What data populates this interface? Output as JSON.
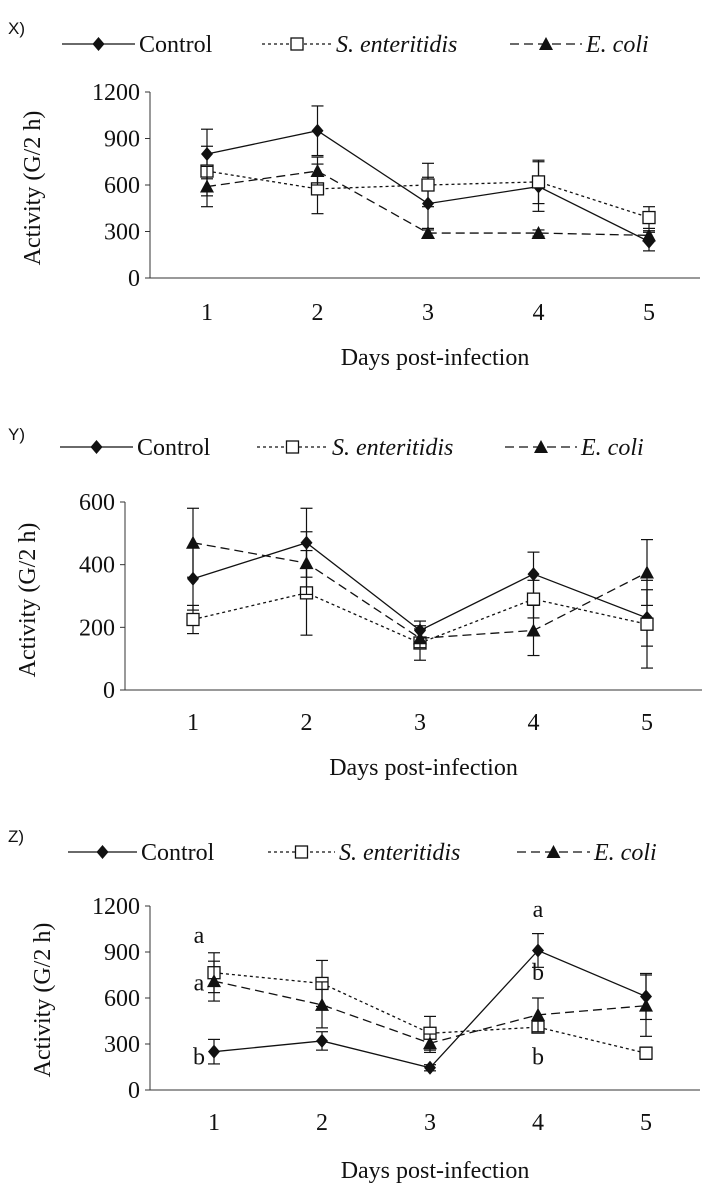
{
  "chart_data": [
    {
      "panel_label": "X)",
      "type": "line",
      "xlabel": "Days post-infection",
      "ylabel": "Activity  (G/2 h)",
      "categories": [
        "1",
        "2",
        "3",
        "4",
        "5"
      ],
      "ylim": [
        0,
        1200
      ],
      "yticks": [
        "0",
        "300",
        "600",
        "900",
        "1200"
      ],
      "series": [
        {
          "name": "Control",
          "values": [
            800,
            950,
            480,
            590,
            235
          ],
          "errors": [
            160,
            160,
            170,
            160,
            60
          ]
        },
        {
          "name": "S. enteritidis",
          "values": [
            690,
            575,
            600,
            620,
            390
          ],
          "errors": [
            160,
            160,
            140,
            140,
            70
          ]
        },
        {
          "name": "E. coli",
          "values": [
            590,
            690,
            290,
            290,
            275
          ],
          "errors": [
            130,
            90,
            30,
            20,
            30
          ]
        }
      ],
      "annotations": []
    },
    {
      "panel_label": "Y)",
      "type": "line",
      "xlabel": "Days post-infection",
      "ylabel": "Activity  (G/2 h)",
      "categories": [
        "1",
        "2",
        "3",
        "4",
        "5"
      ],
      "ylim": [
        0,
        600
      ],
      "yticks": [
        "0",
        "200",
        "400",
        "600"
      ],
      "series": [
        {
          "name": "Control",
          "values": [
            355,
            470,
            190,
            370,
            230
          ],
          "errors": [
            100,
            110,
            30,
            70,
            90
          ]
        },
        {
          "name": "S. enteritidis",
          "values": [
            225,
            310,
            150,
            290,
            210
          ],
          "errors": [
            45,
            135,
            55,
            60,
            140
          ]
        },
        {
          "name": "E. coli",
          "values": [
            470,
            405,
            165,
            190,
            375
          ],
          "errors": [
            110,
            100,
            30,
            80,
            105
          ]
        }
      ],
      "annotations": []
    },
    {
      "panel_label": "Z)",
      "type": "line",
      "xlabel": "Days post-infection",
      "ylabel": "Activity  (G/2 h)",
      "categories": [
        "1",
        "2",
        "3",
        "4",
        "5"
      ],
      "ylim": [
        0,
        1200
      ],
      "yticks": [
        "0",
        "300",
        "600",
        "900",
        "1200"
      ],
      "series": [
        {
          "name": "Control",
          "values": [
            250,
            320,
            145,
            910,
            610
          ],
          "errors": [
            80,
            60,
            20,
            110,
            150
          ]
        },
        {
          "name": "S. enteritidis",
          "values": [
            765,
            695,
            370,
            410,
            240
          ],
          "errors": [
            130,
            150,
            110,
            30,
            40
          ]
        },
        {
          "name": "E. coli",
          "values": [
            710,
            555,
            305,
            490,
            550
          ],
          "errors": [
            130,
            150,
            60,
            110,
            200
          ]
        }
      ],
      "annotations": [
        {
          "text": "a",
          "day": "1",
          "value": 1010
        },
        {
          "text": "a",
          "day": "1",
          "value": 700
        },
        {
          "text": "b",
          "day": "1",
          "value": 220
        },
        {
          "text": "a",
          "day": "4",
          "value": 1180
        },
        {
          "text": "b",
          "day": "4",
          "value": 770
        },
        {
          "text": "b",
          "day": "4",
          "value": 220
        }
      ]
    }
  ]
}
